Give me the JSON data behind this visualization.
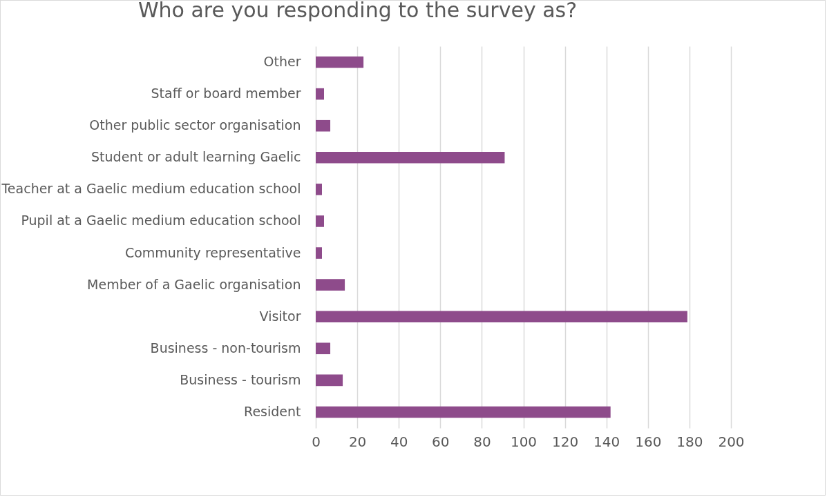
{
  "chart_data": {
    "type": "bar",
    "orientation": "horizontal",
    "title": "Who are you responding to the survey as?",
    "categories": [
      "Other",
      "Staff or board member",
      "Other public sector organisation",
      "Student or adult learning Gaelic",
      "Teacher at a Gaelic medium education school",
      "Pupil at a Gaelic medium education school",
      "Community representative",
      "Member of a Gaelic organisation",
      "Visitor",
      "Business - non-tourism",
      "Business - tourism",
      "Resident"
    ],
    "values": [
      23,
      4,
      7,
      91,
      3,
      4,
      3,
      14,
      179,
      7,
      13,
      142
    ],
    "color": "#8e4b8b",
    "xlim": [
      0,
      200
    ],
    "xticks": [
      0,
      20,
      40,
      60,
      80,
      100,
      120,
      140,
      160,
      180,
      200
    ],
    "grid": "x"
  }
}
